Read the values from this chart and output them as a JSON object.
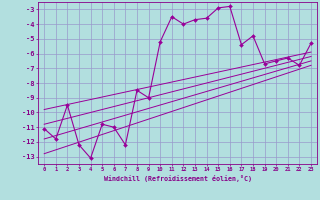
{
  "xlabel": "Windchill (Refroidissement éolien,°C)",
  "bg_color": "#b2dfdf",
  "grid_color": "#9999cc",
  "line_color": "#990099",
  "tick_color": "#880088",
  "xlim": [
    -0.5,
    23.5
  ],
  "ylim": [
    -13.5,
    -2.5
  ],
  "yticks": [
    -13,
    -12,
    -11,
    -10,
    -9,
    -8,
    -7,
    -6,
    -5,
    -4,
    -3
  ],
  "xticks": [
    0,
    1,
    2,
    3,
    4,
    5,
    6,
    7,
    8,
    9,
    10,
    11,
    12,
    13,
    14,
    15,
    16,
    17,
    18,
    19,
    20,
    21,
    22,
    23
  ],
  "main_x": [
    0,
    1,
    2,
    3,
    4,
    5,
    6,
    7,
    8,
    9,
    10,
    11,
    12,
    13,
    14,
    15,
    16,
    17,
    18,
    19,
    20,
    21,
    22,
    23
  ],
  "main_y": [
    -11.1,
    -11.8,
    -9.5,
    -12.2,
    -13.1,
    -10.8,
    -11.0,
    -12.2,
    -8.5,
    -9.0,
    -5.2,
    -3.5,
    -4.0,
    -3.7,
    -3.6,
    -2.9,
    -2.8,
    -5.4,
    -4.8,
    -6.7,
    -6.5,
    -6.3,
    -6.8,
    -5.3
  ],
  "reg_lines": [
    {
      "x": [
        0,
        23
      ],
      "y": [
        -12.8,
        -6.8
      ]
    },
    {
      "x": [
        0,
        23
      ],
      "y": [
        -11.8,
        -6.5
      ]
    },
    {
      "x": [
        0,
        23
      ],
      "y": [
        -10.8,
        -6.2
      ]
    },
    {
      "x": [
        0,
        23
      ],
      "y": [
        -9.8,
        -5.9
      ]
    }
  ]
}
